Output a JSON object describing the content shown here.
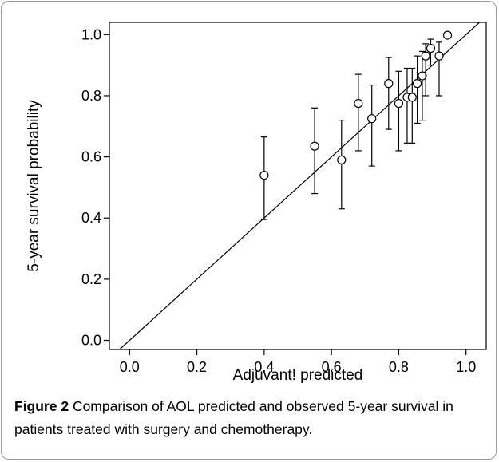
{
  "chart_data": {
    "type": "scatter",
    "xlabel": "Adjuvant! predicted",
    "ylabel": "5-year survival probability",
    "xlim": [
      -0.06,
      1.06
    ],
    "ylim": [
      -0.03,
      1.04
    ],
    "xticks": [
      "0.0",
      "0.2",
      "0.4",
      "0.6",
      "0.8",
      "1.0"
    ],
    "yticks": [
      "0.0",
      "0.2",
      "0.4",
      "0.6",
      "0.8",
      "1.0"
    ],
    "reference_line": "y = x",
    "grid": false,
    "points": [
      {
        "x": 0.4,
        "y": 0.54,
        "lo": 0.395,
        "hi": 0.665
      },
      {
        "x": 0.55,
        "y": 0.635,
        "lo": 0.48,
        "hi": 0.76
      },
      {
        "x": 0.63,
        "y": 0.59,
        "lo": 0.43,
        "hi": 0.72
      },
      {
        "x": 0.68,
        "y": 0.775,
        "lo": 0.62,
        "hi": 0.87
      },
      {
        "x": 0.72,
        "y": 0.725,
        "lo": 0.57,
        "hi": 0.835
      },
      {
        "x": 0.77,
        "y": 0.84,
        "lo": 0.69,
        "hi": 0.925
      },
      {
        "x": 0.8,
        "y": 0.775,
        "lo": 0.62,
        "hi": 0.88
      },
      {
        "x": 0.825,
        "y": 0.795,
        "lo": 0.645,
        "hi": 0.89
      },
      {
        "x": 0.84,
        "y": 0.795,
        "lo": 0.645,
        "hi": 0.89
      },
      {
        "x": 0.855,
        "y": 0.84,
        "lo": 0.71,
        "hi": 0.93
      },
      {
        "x": 0.87,
        "y": 0.865,
        "lo": 0.72,
        "hi": 0.945
      },
      {
        "x": 0.88,
        "y": 0.93,
        "lo": 0.8,
        "hi": 0.97
      },
      {
        "x": 0.895,
        "y": 0.955,
        "lo": 0.9,
        "hi": 0.985
      },
      {
        "x": 0.92,
        "y": 0.93,
        "lo": 0.8,
        "hi": 0.975
      },
      {
        "x": 0.945,
        "y": 0.998,
        "lo": 0.998,
        "hi": 0.998
      }
    ]
  },
  "caption": {
    "label": "Figure 2",
    "text": " Comparison of AOL predicted and observed 5-year survival in patients treated with surgery and chemotherapy."
  }
}
